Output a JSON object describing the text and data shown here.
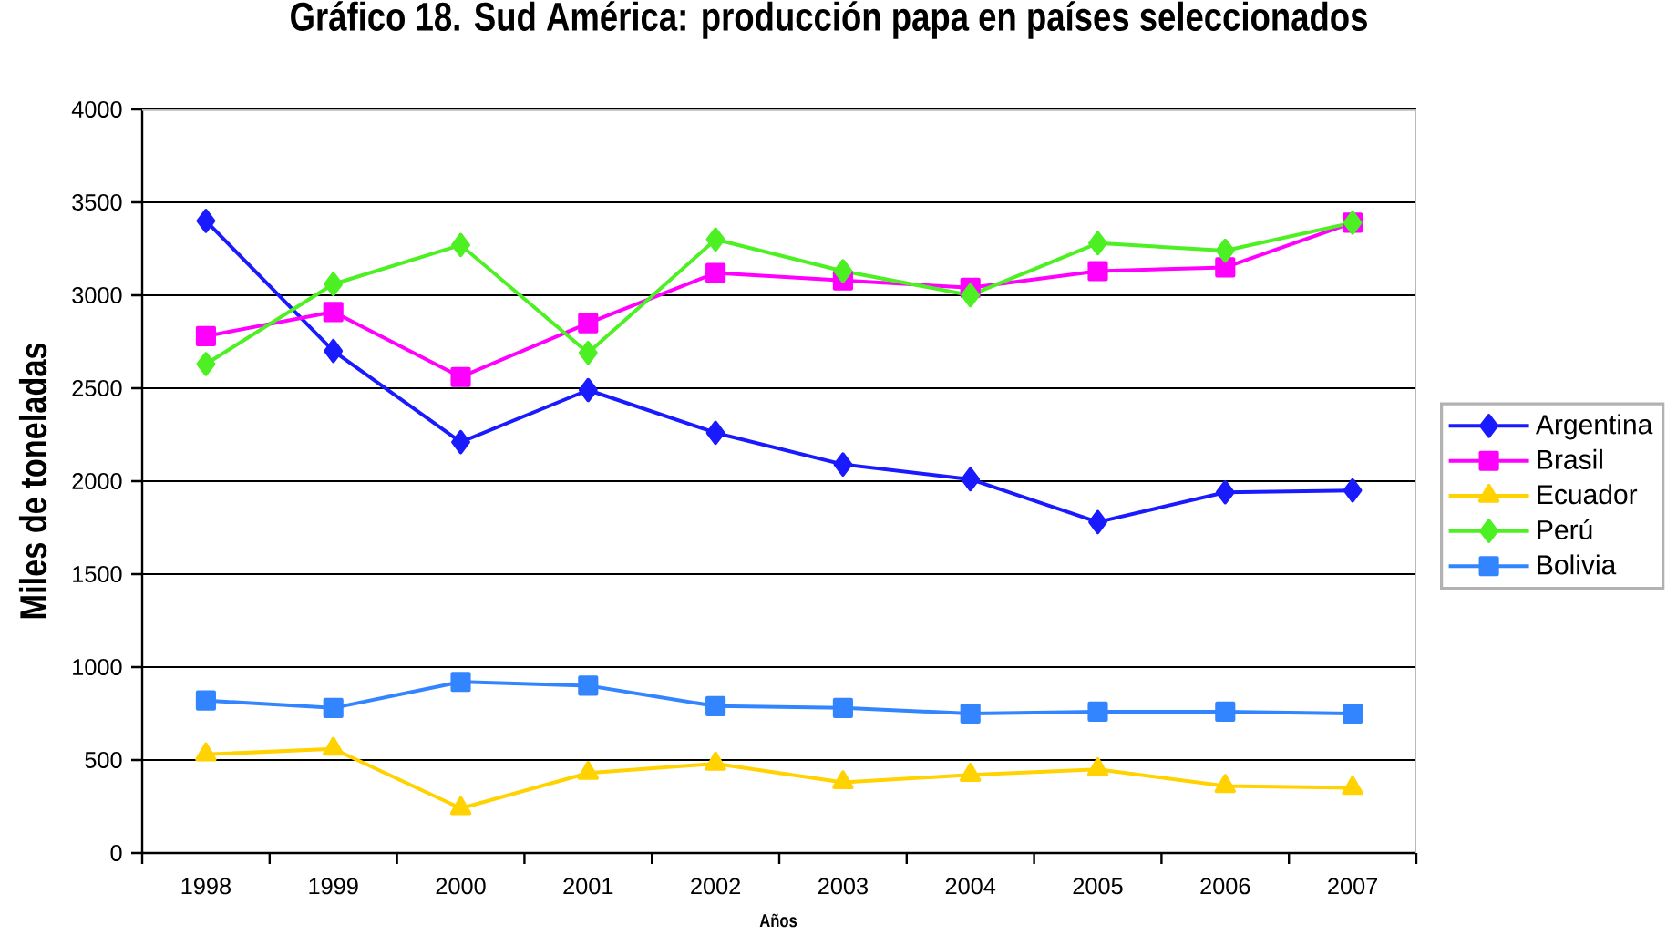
{
  "chart_data": {
    "type": "line",
    "title": "Gráfico 18. Sud América: producción papa en países seleccionados",
    "xlabel": "Años",
    "ylabel": "Miles de toneladas",
    "categories": [
      "1998",
      "1999",
      "2000",
      "2001",
      "2002",
      "2003",
      "2004",
      "2005",
      "2006",
      "2007"
    ],
    "ylim": [
      0,
      4000
    ],
    "yticks": [
      0,
      500,
      1000,
      1500,
      2000,
      2500,
      3000,
      3500,
      4000
    ],
    "grid": "y",
    "legend": "right",
    "line_style": "solid",
    "series": [
      {
        "name": "Argentina",
        "color": "#1a1aff",
        "marker": "diamond",
        "values": [
          3400,
          2700,
          2210,
          2490,
          2260,
          2090,
          2010,
          1780,
          1940,
          1950
        ]
      },
      {
        "name": "Brasil",
        "color": "#ff00ff",
        "marker": "square",
        "values": [
          2780,
          2910,
          2560,
          2850,
          3120,
          3080,
          3040,
          3130,
          3150,
          3390
        ]
      },
      {
        "name": "Ecuador",
        "color": "#ffd200",
        "marker": "triangle",
        "values": [
          530,
          560,
          240,
          430,
          480,
          380,
          420,
          450,
          360,
          350
        ]
      },
      {
        "name": "Perú",
        "color": "#4cf023",
        "marker": "diamond",
        "values": [
          2630,
          3060,
          3270,
          2690,
          3300,
          3130,
          3000,
          3280,
          3240,
          3390
        ]
      },
      {
        "name": "Bolivia",
        "color": "#3385ff",
        "marker": "square",
        "values": [
          820,
          780,
          920,
          900,
          790,
          780,
          750,
          760,
          760,
          750
        ]
      }
    ]
  }
}
